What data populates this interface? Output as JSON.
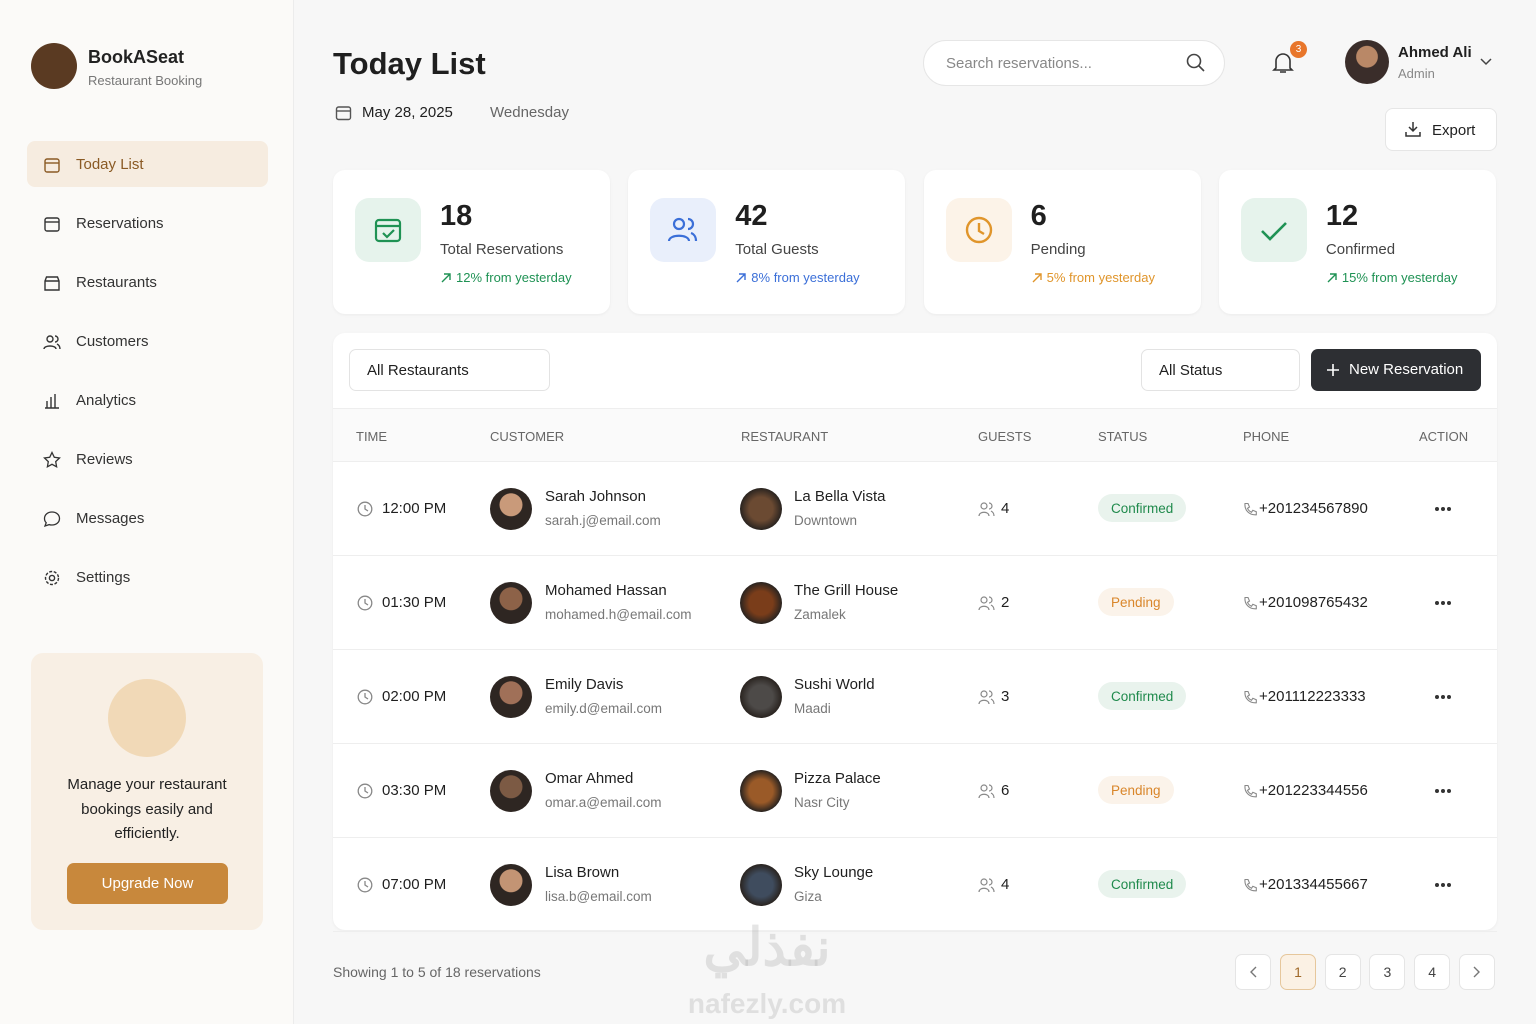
{
  "brand": {
    "name": "BookASeat",
    "subtitle": "Restaurant Booking"
  },
  "nav": [
    "Today List",
    "Reservations",
    "Restaurants",
    "Customers",
    "Analytics",
    "Reviews",
    "Messages",
    "Settings"
  ],
  "promo": {
    "text": "Manage your restaurant bookings easily and efficiently.",
    "button": "Upgrade Now"
  },
  "header": {
    "title": "Today List",
    "date": "May 28, 2025",
    "day": "Wednesday",
    "search_placeholder": "Search reservations...",
    "notifications": 3,
    "user_name": "Ahmed Ali",
    "user_role": "Admin",
    "export": "Export"
  },
  "stats": [
    {
      "value": 18,
      "label": "Total Reservations",
      "change": "12% from yesterday",
      "color": "#1f9254"
    },
    {
      "value": 42,
      "label": "Total Guests",
      "change": "8% from yesterday",
      "color": "#3b6fd8"
    },
    {
      "value": 6,
      "label": "Pending",
      "change": "5% from yesterday",
      "color": "#e0952b"
    },
    {
      "value": 12,
      "label": "Confirmed",
      "change": "15% from yesterday",
      "color": "#1f9254"
    }
  ],
  "filters": {
    "restaurant": "All Restaurants",
    "status": "All Status",
    "new_button": "New Reservation"
  },
  "table": {
    "columns": [
      "TIME",
      "CUSTOMER",
      "RESTAURANT",
      "GUESTS",
      "STATUS",
      "PHONE",
      "ACTION"
    ],
    "rows": [
      {
        "time": "12:00 PM",
        "customer": "Sarah Johnson",
        "email": "sarah.j@email.com",
        "restaurant": "La Bella Vista",
        "area": "Downtown",
        "guests": 4,
        "status": "Confirmed",
        "status_color": "#1f8a4c",
        "phone": "+201234567890"
      },
      {
        "time": "01:30 PM",
        "customer": "Mohamed Hassan",
        "email": "mohamed.h@email.com",
        "restaurant": "The Grill House",
        "area": "Zamalek",
        "guests": 2,
        "status": "Pending",
        "status_color": "#d9862a",
        "phone": "+201098765432"
      },
      {
        "time": "02:00 PM",
        "customer": "Emily Davis",
        "email": "emily.d@email.com",
        "restaurant": "Sushi World",
        "area": "Maadi",
        "guests": 3,
        "status": "Confirmed",
        "status_color": "#1f8a4c",
        "phone": "+201112223333"
      },
      {
        "time": "03:30 PM",
        "customer": "Omar Ahmed",
        "email": "omar.a@email.com",
        "restaurant": "Pizza Palace",
        "area": "Nasr City",
        "guests": 6,
        "status": "Pending",
        "status_color": "#d9862a",
        "phone": "+201223344556"
      },
      {
        "time": "07:00 PM",
        "customer": "Lisa Brown",
        "email": "lisa.b@email.com",
        "restaurant": "Sky Lounge",
        "area": "Giza",
        "guests": 4,
        "status": "Confirmed",
        "status_color": "#1f8a4c",
        "phone": "+201334455667"
      }
    ]
  },
  "footer": {
    "showing": "Showing 1 to 5 of 18 reservations",
    "pages": [
      1,
      2,
      3,
      4
    ]
  },
  "watermark": {
    "arabic": "نفذلي",
    "latin": "nafezly.com"
  }
}
